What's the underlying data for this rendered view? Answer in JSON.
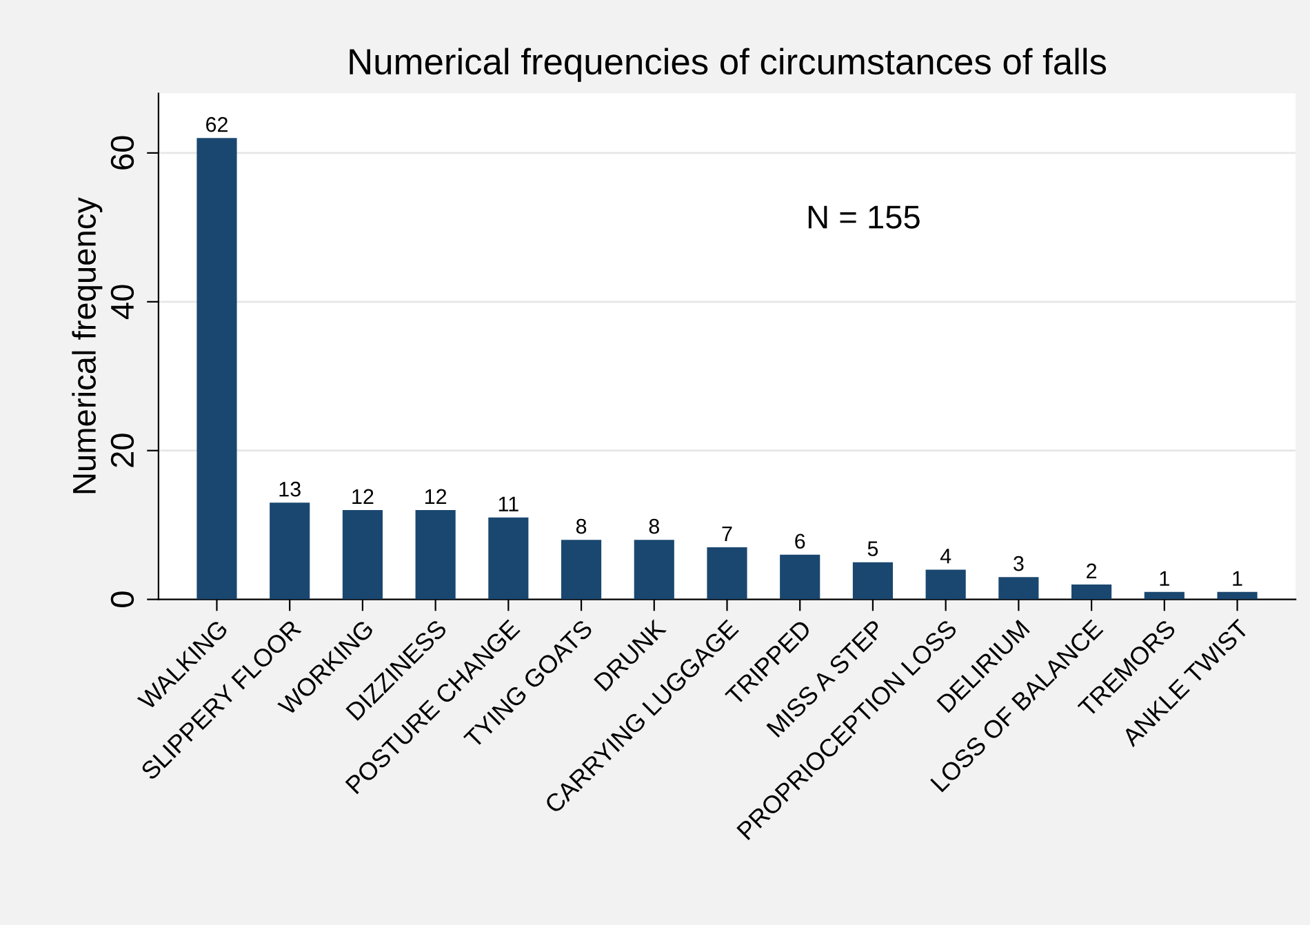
{
  "chart_data": {
    "type": "bar",
    "title": "Numerical frequencies of circumstances of falls",
    "ylabel": "Numerical frequency",
    "categories": [
      "WALKING",
      "SLIPPERY FLOOR",
      "WORKING",
      "DIZZINESS",
      "POSTURE CHANGE",
      "TYING GOATS",
      "DRUNK",
      "CARRYING LUGGAGE",
      "TRIPPED",
      "MISS A STEP",
      "PROPRIOCEPTION LOSS",
      "DELIRIUM",
      "LOSS OF BALANCE",
      "TREMORS",
      "ANKLE TWIST"
    ],
    "values": [
      62,
      13,
      12,
      12,
      11,
      8,
      8,
      7,
      6,
      5,
      4,
      3,
      2,
      1,
      1
    ],
    "color": "#1a476f",
    "ylim": [
      0,
      68
    ],
    "yticks": [
      0,
      20,
      40,
      60
    ],
    "grid": "y",
    "data_labels": true,
    "annotations": [
      "N = 155"
    ]
  }
}
